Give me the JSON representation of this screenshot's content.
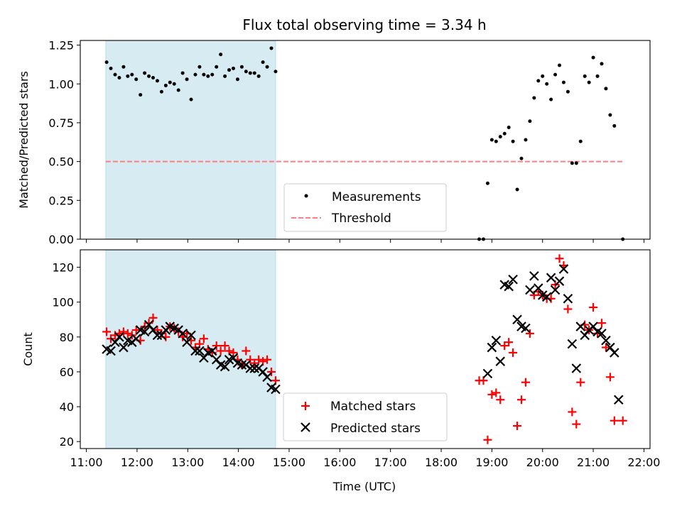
{
  "chart_data": {
    "type": "scatter",
    "title": "Flux total observing time = 3.34 h",
    "xlabel": "Time (UTC)",
    "x_unit": "hours UTC",
    "xlim": [
      "11:00",
      "22:00"
    ],
    "x_ticks": [
      "11:00",
      "12:00",
      "13:00",
      "14:00",
      "15:00",
      "16:00",
      "17:00",
      "18:00",
      "19:00",
      "20:00",
      "21:00",
      "22:00"
    ],
    "shaded_interval": {
      "start": "11:23",
      "end": "14:44",
      "color": "#add8e6"
    },
    "panels": [
      {
        "ylabel": "Matched/Predicted stars",
        "ylim": [
          0,
          1.28
        ],
        "y_ticks": [
          "0.00",
          "0.25",
          "0.50",
          "0.75",
          "1.00",
          "1.25"
        ],
        "legend": {
          "position": "lower center",
          "entries": [
            "Measurements",
            "Threshold"
          ]
        },
        "threshold": {
          "name": "Threshold",
          "y": 0.5,
          "x_start": "11:23",
          "x_end": "21:35",
          "color": "#ff7f7f",
          "style": "dashed"
        },
        "series": [
          {
            "name": "Measurements",
            "marker": "dot",
            "color": "#000000",
            "points": [
              [
                "11:24",
                1.14
              ],
              [
                "11:29",
                1.1
              ],
              [
                "11:34",
                1.06
              ],
              [
                "11:39",
                1.04
              ],
              [
                "11:44",
                1.11
              ],
              [
                "11:49",
                1.05
              ],
              [
                "11:54",
                1.06
              ],
              [
                "11:59",
                1.03
              ],
              [
                "12:04",
                0.93
              ],
              [
                "12:09",
                1.07
              ],
              [
                "12:14",
                1.05
              ],
              [
                "12:19",
                1.04
              ],
              [
                "12:24",
                1.02
              ],
              [
                "12:29",
                0.95
              ],
              [
                "12:34",
                0.99
              ],
              [
                "12:39",
                1.01
              ],
              [
                "12:44",
                1.0
              ],
              [
                "12:49",
                0.96
              ],
              [
                "12:54",
                1.07
              ],
              [
                "12:59",
                1.03
              ],
              [
                "13:04",
                0.9
              ],
              [
                "13:09",
                1.06
              ],
              [
                "13:14",
                1.11
              ],
              [
                "13:19",
                1.06
              ],
              [
                "13:24",
                1.05
              ],
              [
                "13:29",
                1.06
              ],
              [
                "13:34",
                1.11
              ],
              [
                "13:39",
                1.19
              ],
              [
                "13:44",
                1.05
              ],
              [
                "13:49",
                1.09
              ],
              [
                "13:54",
                1.1
              ],
              [
                "13:59",
                1.03
              ],
              [
                "14:04",
                1.11
              ],
              [
                "14:09",
                1.08
              ],
              [
                "14:14",
                1.07
              ],
              [
                "14:19",
                1.07
              ],
              [
                "14:24",
                1.05
              ],
              [
                "14:29",
                1.14
              ],
              [
                "14:34",
                1.11
              ],
              [
                "14:39",
                1.23
              ],
              [
                "14:44",
                1.08
              ],
              [
                "18:45",
                0.0
              ],
              [
                "18:50",
                0.0
              ],
              [
                "18:55",
                0.36
              ],
              [
                "19:00",
                0.64
              ],
              [
                "19:05",
                0.63
              ],
              [
                "19:10",
                0.66
              ],
              [
                "19:15",
                0.68
              ],
              [
                "19:20",
                0.72
              ],
              [
                "19:25",
                0.63
              ],
              [
                "19:30",
                0.32
              ],
              [
                "19:35",
                0.52
              ],
              [
                "19:40",
                0.64
              ],
              [
                "19:45",
                0.76
              ],
              [
                "19:50",
                0.91
              ],
              [
                "19:55",
                1.02
              ],
              [
                "20:00",
                1.05
              ],
              [
                "20:05",
                1.0
              ],
              [
                "20:10",
                0.9
              ],
              [
                "20:15",
                1.06
              ],
              [
                "20:20",
                1.12
              ],
              [
                "20:25",
                1.01
              ],
              [
                "20:30",
                0.95
              ],
              [
                "20:35",
                0.49
              ],
              [
                "20:40",
                0.49
              ],
              [
                "20:45",
                0.63
              ],
              [
                "20:50",
                1.05
              ],
              [
                "20:55",
                1.01
              ],
              [
                "21:00",
                1.17
              ],
              [
                "21:05",
                1.05
              ],
              [
                "21:10",
                1.13
              ],
              [
                "21:15",
                0.97
              ],
              [
                "21:20",
                0.8
              ],
              [
                "21:25",
                0.73
              ],
              [
                "21:35",
                0.0
              ]
            ]
          }
        ]
      },
      {
        "ylabel": "Count",
        "ylim": [
          16,
          130
        ],
        "y_ticks": [
          "20",
          "40",
          "60",
          "80",
          "100",
          "120"
        ],
        "legend": {
          "position": "lower center",
          "entries": [
            "Matched stars",
            "Predicted stars"
          ]
        },
        "series": [
          {
            "name": "Matched stars",
            "marker": "plus",
            "color": "#ff0000",
            "points": [
              [
                "11:24",
                83
              ],
              [
                "11:29",
                79
              ],
              [
                "11:34",
                81
              ],
              [
                "11:39",
                82
              ],
              [
                "11:44",
                83
              ],
              [
                "11:49",
                82
              ],
              [
                "11:54",
                81
              ],
              [
                "11:59",
                84
              ],
              [
                "12:04",
                78
              ],
              [
                "12:09",
                86
              ],
              [
                "12:14",
                88
              ],
              [
                "12:19",
                91
              ],
              [
                "12:24",
                84
              ],
              [
                "12:29",
                82
              ],
              [
                "12:34",
                80
              ],
              [
                "12:39",
                86
              ],
              [
                "12:44",
                85
              ],
              [
                "12:49",
                83
              ],
              [
                "12:54",
                80
              ],
              [
                "12:59",
                82
              ],
              [
                "13:04",
                78
              ],
              [
                "13:09",
                74
              ],
              [
                "13:14",
                76
              ],
              [
                "13:19",
                79
              ],
              [
                "13:24",
                73
              ],
              [
                "13:29",
                71
              ],
              [
                "13:34",
                75
              ],
              [
                "13:39",
                72
              ],
              [
                "13:44",
                75
              ],
              [
                "13:49",
                72
              ],
              [
                "13:54",
                71
              ],
              [
                "13:59",
                67
              ],
              [
                "14:04",
                64
              ],
              [
                "14:09",
                72
              ],
              [
                "14:14",
                67
              ],
              [
                "14:19",
                65
              ],
              [
                "14:24",
                67
              ],
              [
                "14:29",
                66
              ],
              [
                "14:34",
                67
              ],
              [
                "14:39",
                60
              ],
              [
                "14:44",
                55
              ],
              [
                "18:45",
                55
              ],
              [
                "18:50",
                55
              ],
              [
                "18:55",
                21
              ],
              [
                "19:00",
                47
              ],
              [
                "19:05",
                48
              ],
              [
                "19:10",
                44
              ],
              [
                "19:15",
                75
              ],
              [
                "19:20",
                77
              ],
              [
                "19:25",
                71
              ],
              [
                "19:30",
                29
              ],
              [
                "19:35",
                44
              ],
              [
                "19:40",
                54
              ],
              [
                "19:45",
                82
              ],
              [
                "19:50",
                104
              ],
              [
                "19:55",
                106
              ],
              [
                "20:00",
                104
              ],
              [
                "20:05",
                102
              ],
              [
                "20:10",
                102
              ],
              [
                "20:15",
                110
              ],
              [
                "20:20",
                125
              ],
              [
                "20:25",
                121
              ],
              [
                "20:30",
                96
              ],
              [
                "20:35",
                37
              ],
              [
                "20:40",
                30
              ],
              [
                "20:45",
                54
              ],
              [
                "20:50",
                87
              ],
              [
                "20:55",
                84
              ],
              [
                "21:00",
                97
              ],
              [
                "21:05",
                82
              ],
              [
                "21:10",
                88
              ],
              [
                "21:15",
                74
              ],
              [
                "21:20",
                57
              ],
              [
                "21:25",
                32
              ],
              [
                "21:35",
                32
              ]
            ]
          },
          {
            "name": "Predicted stars",
            "marker": "x",
            "color": "#000000",
            "points": [
              [
                "11:24",
                73
              ],
              [
                "11:29",
                72
              ],
              [
                "11:34",
                77
              ],
              [
                "11:39",
                80
              ],
              [
                "11:44",
                74
              ],
              [
                "11:49",
                78
              ],
              [
                "11:54",
                77
              ],
              [
                "11:59",
                79
              ],
              [
                "12:04",
                84
              ],
              [
                "12:09",
                83
              ],
              [
                "12:14",
                87
              ],
              [
                "12:19",
                84
              ],
              [
                "12:24",
                81
              ],
              [
                "12:29",
                81
              ],
              [
                "12:34",
                84
              ],
              [
                "12:39",
                86
              ],
              [
                "12:44",
                85
              ],
              [
                "12:49",
                84
              ],
              [
                "12:54",
                82
              ],
              [
                "12:59",
                77
              ],
              [
                "13:04",
                81
              ],
              [
                "13:09",
                72
              ],
              [
                "13:14",
                72
              ],
              [
                "13:19",
                68
              ],
              [
                "13:24",
                71
              ],
              [
                "13:29",
                72
              ],
              [
                "13:34",
                67
              ],
              [
                "13:39",
                64
              ],
              [
                "13:44",
                63
              ],
              [
                "13:49",
                67
              ],
              [
                "13:54",
                68
              ],
              [
                "13:59",
                65
              ],
              [
                "14:04",
                64
              ],
              [
                "14:09",
                64
              ],
              [
                "14:14",
                62
              ],
              [
                "14:19",
                62
              ],
              [
                "14:24",
                62
              ],
              [
                "14:29",
                60
              ],
              [
                "14:34",
                57
              ],
              [
                "14:39",
                51
              ],
              [
                "14:44",
                50
              ],
              [
                "18:55",
                59
              ],
              [
                "19:00",
                74
              ],
              [
                "19:05",
                78
              ],
              [
                "19:10",
                66
              ],
              [
                "19:15",
                110
              ],
              [
                "19:20",
                109
              ],
              [
                "19:25",
                113
              ],
              [
                "19:30",
                90
              ],
              [
                "19:35",
                86
              ],
              [
                "19:40",
                85
              ],
              [
                "19:45",
                107
              ],
              [
                "19:50",
                115
              ],
              [
                "19:55",
                108
              ],
              [
                "20:00",
                104
              ],
              [
                "20:05",
                103
              ],
              [
                "20:10",
                114
              ],
              [
                "20:15",
                107
              ],
              [
                "20:20",
                112
              ],
              [
                "20:25",
                119
              ],
              [
                "20:30",
                102
              ],
              [
                "20:35",
                76
              ],
              [
                "20:40",
                62
              ],
              [
                "20:45",
                86
              ],
              [
                "20:50",
                81
              ],
              [
                "20:55",
                84
              ],
              [
                "21:00",
                86
              ],
              [
                "21:05",
                83
              ],
              [
                "21:10",
                82
              ],
              [
                "21:15",
                78
              ],
              [
                "21:20",
                74
              ],
              [
                "21:25",
                71
              ],
              [
                "21:30",
                44
              ]
            ]
          }
        ]
      }
    ]
  }
}
